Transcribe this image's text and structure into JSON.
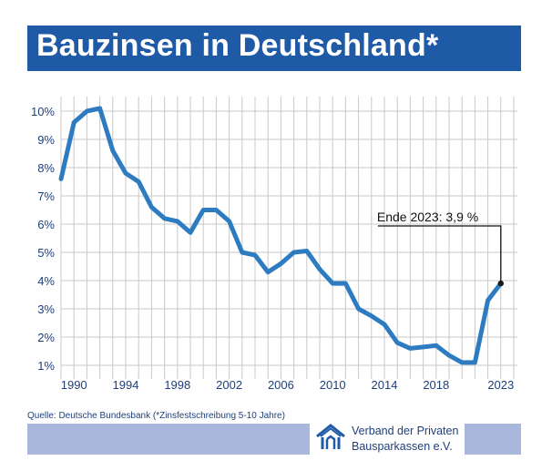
{
  "header": {
    "title": "Bauzinsen in Deutschland*"
  },
  "source": "Quelle: Deutsche Bundesbank (*Zinsfestschreibung 5-10 Jahre)",
  "logo": {
    "icon": "houses-logo-icon",
    "line1": "Verband der Privaten",
    "line2": "Bausparkassen e.V."
  },
  "colors": {
    "title_bar": "#1f5aa6",
    "line": "#2d7cc1",
    "footer_bar": "#a9b7dc",
    "text": "#1f3f7a"
  },
  "chart_data": {
    "type": "line",
    "title": "Bauzinsen in Deutschland*",
    "xlabel": "",
    "ylabel": "",
    "x": [
      1989,
      1990,
      1991,
      1992,
      1993,
      1994,
      1995,
      1996,
      1997,
      1998,
      1999,
      2000,
      2001,
      2002,
      2003,
      2004,
      2005,
      2006,
      2007,
      2008,
      2009,
      2010,
      2011,
      2012,
      2013,
      2014,
      2015,
      2016,
      2017,
      2018,
      2019,
      2020,
      2021,
      2022,
      2023
    ],
    "values": [
      7.6,
      9.6,
      10.0,
      10.1,
      8.6,
      7.8,
      7.5,
      6.6,
      6.2,
      6.1,
      5.7,
      6.5,
      6.5,
      6.1,
      5.0,
      4.9,
      4.3,
      4.6,
      5.0,
      5.05,
      4.4,
      3.9,
      3.9,
      3.0,
      2.75,
      2.45,
      1.8,
      1.6,
      1.65,
      1.7,
      1.35,
      1.1,
      1.1,
      3.3,
      3.9
    ],
    "ylim": [
      1,
      10
    ],
    "xlim": [
      1989,
      2024
    ],
    "yticks": [
      1,
      2,
      3,
      4,
      5,
      6,
      7,
      8,
      9,
      10
    ],
    "ytick_labels": [
      "1%",
      "2%",
      "3%",
      "4%",
      "5%",
      "6%",
      "7%",
      "8%",
      "9%",
      "10%"
    ],
    "xticks": [
      1990,
      1994,
      1998,
      2002,
      2006,
      2010,
      2014,
      2018,
      2023
    ],
    "xtick_labels": [
      "1990",
      "1994",
      "1998",
      "2002",
      "2006",
      "2010",
      "2014",
      "2018",
      "2023"
    ],
    "grid": true,
    "annotation": {
      "text": "Ende 2023: 3,9 %",
      "x": 2023,
      "y": 3.9
    }
  }
}
